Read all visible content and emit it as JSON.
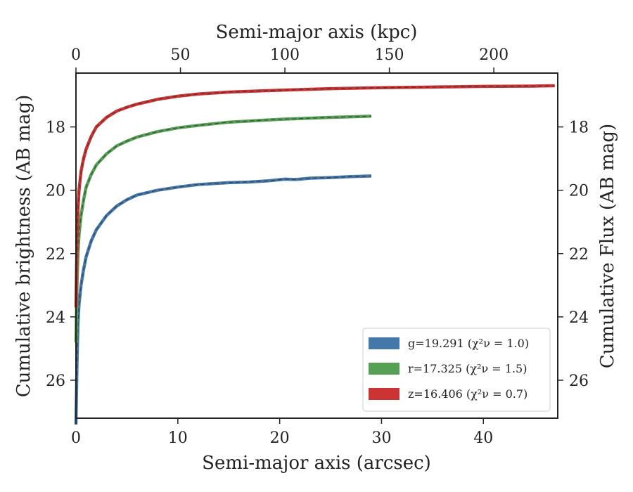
{
  "chart_data": {
    "type": "line",
    "xlabel": "Semi-major axis (arcsec)",
    "x2label": "Semi-major axis (kpc)",
    "ylabel": "Cumulative brightness (AB mag)",
    "y2label": "Cumulative Flux (AB mag)",
    "xlim": [
      0,
      47.3
    ],
    "x2lim": [
      0,
      230.6
    ],
    "ylim": [
      27.2,
      16.3
    ],
    "y_inverted": true,
    "xticks": [
      0,
      10,
      20,
      30,
      40
    ],
    "x2ticks": [
      0,
      50,
      100,
      150,
      200
    ],
    "yticks": [
      18,
      20,
      22,
      24,
      26
    ],
    "grid": false,
    "legend_position": "lower-right",
    "series": [
      {
        "name": "g=19.291 (χ²ν = 1.0)",
        "band": "g",
        "total_mag": 19.291,
        "chi2_nu": 1.0,
        "color": "#4477aa",
        "x": [
          0.0,
          0.1,
          0.2,
          0.3,
          0.5,
          0.75,
          1.0,
          1.5,
          2.0,
          3.0,
          4.0,
          5.0,
          6.0,
          8.0,
          10.0,
          12.0,
          15.0,
          17.0,
          19.0,
          20.5,
          21.5,
          22.0,
          23.0,
          25.0,
          27.0,
          29.0
        ],
        "y": [
          27.4,
          25.5,
          24.2,
          23.6,
          23.0,
          22.5,
          22.1,
          21.6,
          21.25,
          20.8,
          20.5,
          20.3,
          20.15,
          20.0,
          19.9,
          19.82,
          19.76,
          19.74,
          19.7,
          19.65,
          19.66,
          19.65,
          19.62,
          19.6,
          19.57,
          19.55
        ]
      },
      {
        "name": "r=17.325 (χ²ν = 1.5)",
        "band": "r",
        "total_mag": 17.325,
        "chi2_nu": 1.5,
        "color": "#55a055",
        "x": [
          0.0,
          0.1,
          0.2,
          0.3,
          0.5,
          0.75,
          1.0,
          1.5,
          2.0,
          3.0,
          4.0,
          5.0,
          6.0,
          8.0,
          10.0,
          12.0,
          15.0,
          20.0,
          25.0,
          29.0
        ],
        "y": [
          24.8,
          23.0,
          22.0,
          21.4,
          20.8,
          20.3,
          19.9,
          19.5,
          19.2,
          18.85,
          18.6,
          18.45,
          18.32,
          18.15,
          18.03,
          17.95,
          17.85,
          17.76,
          17.7,
          17.66
        ]
      },
      {
        "name": "z=16.406 (χ²ν = 0.7)",
        "band": "z",
        "total_mag": 16.406,
        "chi2_nu": 0.7,
        "color": "#cc3333",
        "x": [
          0.0,
          0.1,
          0.2,
          0.3,
          0.5,
          0.75,
          1.0,
          1.5,
          2.0,
          3.0,
          4.0,
          5.0,
          6.0,
          8.0,
          10.0,
          12.0,
          15.0,
          20.0,
          25.0,
          30.0,
          35.0,
          40.0,
          45.0,
          47.0
        ],
        "y": [
          23.7,
          21.6,
          20.6,
          20.0,
          19.4,
          19.0,
          18.7,
          18.3,
          18.0,
          17.7,
          17.5,
          17.38,
          17.28,
          17.13,
          17.03,
          16.96,
          16.9,
          16.84,
          16.79,
          16.76,
          16.74,
          16.72,
          16.71,
          16.7
        ]
      }
    ]
  }
}
